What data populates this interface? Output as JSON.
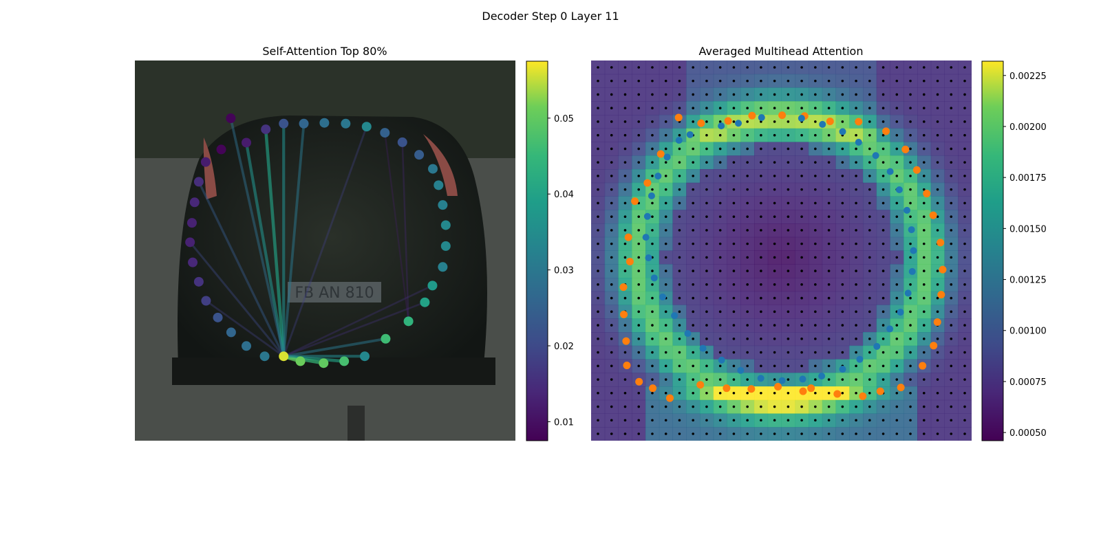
{
  "figure": {
    "suptitle": "Decoder Step 0 Layer 11"
  },
  "chart_data": [
    {
      "type": "scatter",
      "title": "Self-Attention Top 80%",
      "background": "photo of the rear of a dark hatchback car on a city street",
      "plate_text": "FB AN 810",
      "colormap": "viridis",
      "colorbar": {
        "ticks": [
          0.01,
          0.02,
          0.03,
          0.04,
          0.05
        ],
        "tick_labels": [
          "0.01",
          "0.02",
          "0.03",
          "0.04",
          "0.05"
        ],
        "range": [
          0.0075,
          0.0575
        ]
      },
      "points": [
        {
          "x": 0.214,
          "y": 0.248,
          "v": 0.008
        },
        {
          "x": 0.176,
          "y": 0.217,
          "v": 0.012
        },
        {
          "x": 0.215,
          "y": 0.166,
          "v": 0.016
        },
        {
          "x": 0.27,
          "y": 0.14,
          "v": 0.02
        },
        {
          "x": 0.325,
          "y": 0.166,
          "v": 0.022
        },
        {
          "x": 0.383,
          "y": 0.152,
          "v": 0.024
        },
        {
          "x": 0.44,
          "y": 0.15,
          "v": 0.028
        },
        {
          "x": 0.479,
          "y": 0.181,
          "v": 0.03
        },
        {
          "x": 0.496,
          "y": 0.164,
          "v": 0.029
        },
        {
          "x": 0.541,
          "y": 0.14,
          "v": 0.032
        },
        {
          "x": 0.591,
          "y": 0.166,
          "v": 0.034
        },
        {
          "x": 0.634,
          "y": 0.216,
          "v": 0.028
        },
        {
          "x": 0.673,
          "y": 0.242,
          "v": 0.03
        },
        {
          "x": 0.667,
          "y": 0.293,
          "v": 0.032
        },
        {
          "x": 0.703,
          "y": 0.359,
          "v": 0.028
        },
        {
          "x": 0.703,
          "y": 0.416,
          "v": 0.026
        },
        {
          "x": 0.676,
          "y": 0.466,
          "v": 0.026
        },
        {
          "x": 0.632,
          "y": 0.532,
          "v": 0.021
        },
        {
          "x": 0.575,
          "y": 0.568,
          "v": 0.018
        },
        {
          "x": 0.51,
          "y": 0.588,
          "v": 0.016
        },
        {
          "x": 0.437,
          "y": 0.579,
          "v": 0.015
        },
        {
          "x": 0.375,
          "y": 0.535,
          "v": 0.014
        },
        {
          "x": 0.339,
          "y": 0.461,
          "v": 0.013
        },
        {
          "x": 0.318,
          "y": 0.417,
          "v": 0.013
        },
        {
          "x": 0.303,
          "y": 0.369,
          "v": 0.014
        },
        {
          "x": 0.283,
          "y": 0.326,
          "v": 0.015
        },
        {
          "x": 0.278,
          "y": 0.272,
          "v": 0.016
        },
        {
          "x": 0.269,
          "y": 0.215,
          "v": 0.018
        },
        {
          "x": 0.285,
          "y": 0.167,
          "v": 0.02
        },
        {
          "x": 0.293,
          "y": 0.145,
          "v": 0.024
        },
        {
          "x": 0.336,
          "y": 0.143,
          "v": 0.026
        },
        {
          "x": 0.394,
          "y": 0.14,
          "v": 0.03
        }
      ],
      "ring": [
        {
          "x": 0.252,
          "y": 0.152,
          "v": 0.008
        },
        {
          "x": 0.293,
          "y": 0.216,
          "v": 0.012
        },
        {
          "x": 0.344,
          "y": 0.181,
          "v": 0.016
        },
        {
          "x": 0.391,
          "y": 0.166,
          "v": 0.022
        },
        {
          "x": 0.444,
          "y": 0.166,
          "v": 0.026
        },
        {
          "x": 0.498,
          "y": 0.164,
          "v": 0.028
        },
        {
          "x": 0.554,
          "y": 0.166,
          "v": 0.03
        },
        {
          "x": 0.609,
          "y": 0.174,
          "v": 0.034
        },
        {
          "x": 0.657,
          "y": 0.19,
          "v": 0.025
        },
        {
          "x": 0.703,
          "y": 0.215,
          "v": 0.022
        },
        {
          "x": 0.747,
          "y": 0.248,
          "v": 0.024
        },
        {
          "x": 0.783,
          "y": 0.285,
          "v": 0.03
        },
        {
          "x": 0.798,
          "y": 0.328,
          "v": 0.032
        },
        {
          "x": 0.809,
          "y": 0.38,
          "v": 0.032
        },
        {
          "x": 0.817,
          "y": 0.433,
          "v": 0.034
        },
        {
          "x": 0.817,
          "y": 0.488,
          "v": 0.034
        },
        {
          "x": 0.809,
          "y": 0.543,
          "v": 0.032
        },
        {
          "x": 0.782,
          "y": 0.592,
          "v": 0.038
        },
        {
          "x": 0.762,
          "y": 0.636,
          "v": 0.04
        },
        {
          "x": 0.719,
          "y": 0.686,
          "v": 0.044
        },
        {
          "x": 0.659,
          "y": 0.732,
          "v": 0.046
        },
        {
          "x": 0.604,
          "y": 0.778,
          "v": 0.034
        },
        {
          "x": 0.55,
          "y": 0.791,
          "v": 0.047
        },
        {
          "x": 0.496,
          "y": 0.796,
          "v": 0.05
        },
        {
          "x": 0.435,
          "y": 0.791,
          "v": 0.051
        },
        {
          "x": 0.391,
          "y": 0.778,
          "v": 0.056
        },
        {
          "x": 0.341,
          "y": 0.778,
          "v": 0.03
        },
        {
          "x": 0.293,
          "y": 0.751,
          "v": 0.028
        },
        {
          "x": 0.253,
          "y": 0.715,
          "v": 0.026
        },
        {
          "x": 0.218,
          "y": 0.676,
          "v": 0.022
        },
        {
          "x": 0.187,
          "y": 0.632,
          "v": 0.018
        },
        {
          "x": 0.168,
          "y": 0.582,
          "v": 0.016
        },
        {
          "x": 0.152,
          "y": 0.531,
          "v": 0.014
        },
        {
          "x": 0.145,
          "y": 0.478,
          "v": 0.013
        },
        {
          "x": 0.15,
          "y": 0.427,
          "v": 0.013
        },
        {
          "x": 0.157,
          "y": 0.373,
          "v": 0.014
        },
        {
          "x": 0.168,
          "y": 0.319,
          "v": 0.015
        },
        {
          "x": 0.186,
          "y": 0.267,
          "v": 0.012
        },
        {
          "x": 0.227,
          "y": 0.234,
          "v": 0.008
        }
      ],
      "edges": [
        {
          "from": 25,
          "to": 1,
          "w": 0.036
        },
        {
          "from": 25,
          "to": 2,
          "w": 0.04
        },
        {
          "from": 25,
          "to": 3,
          "w": 0.035
        },
        {
          "from": 25,
          "to": 4,
          "w": 0.03
        },
        {
          "from": 25,
          "to": 0,
          "w": 0.028
        },
        {
          "from": 25,
          "to": 36,
          "w": 0.024
        },
        {
          "from": 25,
          "to": 33,
          "w": 0.02
        },
        {
          "from": 25,
          "to": 30,
          "w": 0.018
        },
        {
          "from": 25,
          "to": 22,
          "w": 0.04
        },
        {
          "from": 25,
          "to": 23,
          "w": 0.045
        },
        {
          "from": 25,
          "to": 24,
          "w": 0.05
        },
        {
          "from": 25,
          "to": 21,
          "w": 0.034
        },
        {
          "from": 25,
          "to": 20,
          "w": 0.03
        },
        {
          "from": 25,
          "to": 7,
          "w": 0.018
        },
        {
          "from": 25,
          "to": 17,
          "w": 0.016
        },
        {
          "from": 25,
          "to": 18,
          "w": 0.016
        },
        {
          "from": 19,
          "to": 9,
          "w": 0.014
        },
        {
          "from": 19,
          "to": 8,
          "w": 0.012
        }
      ]
    },
    {
      "type": "heatmap",
      "title": "Averaged Multihead Attention",
      "colormap": "viridis",
      "colorbar": {
        "ticks": [
          0.0005,
          0.00075,
          0.001,
          0.00125,
          0.0015,
          0.00175,
          0.002,
          0.00225
        ],
        "tick_labels": [
          "0.00050",
          "0.00075",
          "0.00100",
          "0.00125",
          "0.00150",
          "0.00175",
          "0.00200",
          "0.00225"
        ],
        "range": [
          0.00046,
          0.00232
        ]
      },
      "grid": {
        "rows": 28,
        "cols": 28
      },
      "orange_points": [
        {
          "x": 0.23,
          "y": 0.15
        },
        {
          "x": 0.289,
          "y": 0.165
        },
        {
          "x": 0.36,
          "y": 0.159
        },
        {
          "x": 0.423,
          "y": 0.145
        },
        {
          "x": 0.502,
          "y": 0.144
        },
        {
          "x": 0.561,
          "y": 0.146
        },
        {
          "x": 0.628,
          "y": 0.16
        },
        {
          "x": 0.703,
          "y": 0.161
        },
        {
          "x": 0.775,
          "y": 0.186
        },
        {
          "x": 0.826,
          "y": 0.234
        },
        {
          "x": 0.856,
          "y": 0.288
        },
        {
          "x": 0.882,
          "y": 0.35
        },
        {
          "x": 0.899,
          "y": 0.407
        },
        {
          "x": 0.918,
          "y": 0.479
        },
        {
          "x": 0.924,
          "y": 0.55
        },
        {
          "x": 0.92,
          "y": 0.616
        },
        {
          "x": 0.91,
          "y": 0.688
        },
        {
          "x": 0.9,
          "y": 0.75
        },
        {
          "x": 0.871,
          "y": 0.803
        },
        {
          "x": 0.814,
          "y": 0.86
        },
        {
          "x": 0.76,
          "y": 0.87
        },
        {
          "x": 0.714,
          "y": 0.883
        },
        {
          "x": 0.647,
          "y": 0.877
        },
        {
          "x": 0.578,
          "y": 0.862
        },
        {
          "x": 0.557,
          "y": 0.87
        },
        {
          "x": 0.491,
          "y": 0.858
        },
        {
          "x": 0.421,
          "y": 0.864
        },
        {
          "x": 0.356,
          "y": 0.862
        },
        {
          "x": 0.287,
          "y": 0.853
        },
        {
          "x": 0.207,
          "y": 0.888
        },
        {
          "x": 0.162,
          "y": 0.862
        },
        {
          "x": 0.126,
          "y": 0.845
        },
        {
          "x": 0.094,
          "y": 0.802
        },
        {
          "x": 0.092,
          "y": 0.738
        },
        {
          "x": 0.086,
          "y": 0.668
        },
        {
          "x": 0.085,
          "y": 0.596
        },
        {
          "x": 0.102,
          "y": 0.529
        },
        {
          "x": 0.098,
          "y": 0.465
        },
        {
          "x": 0.115,
          "y": 0.37
        },
        {
          "x": 0.148,
          "y": 0.322
        },
        {
          "x": 0.183,
          "y": 0.246
        }
      ],
      "blue_points": [
        {
          "x": 0.26,
          "y": 0.195
        },
        {
          "x": 0.342,
          "y": 0.172
        },
        {
          "x": 0.387,
          "y": 0.165
        },
        {
          "x": 0.448,
          "y": 0.15
        },
        {
          "x": 0.553,
          "y": 0.152
        },
        {
          "x": 0.608,
          "y": 0.168
        },
        {
          "x": 0.661,
          "y": 0.187
        },
        {
          "x": 0.703,
          "y": 0.215
        },
        {
          "x": 0.748,
          "y": 0.25
        },
        {
          "x": 0.786,
          "y": 0.292
        },
        {
          "x": 0.81,
          "y": 0.34
        },
        {
          "x": 0.83,
          "y": 0.394
        },
        {
          "x": 0.842,
          "y": 0.445
        },
        {
          "x": 0.847,
          "y": 0.5
        },
        {
          "x": 0.844,
          "y": 0.555
        },
        {
          "x": 0.833,
          "y": 0.612
        },
        {
          "x": 0.813,
          "y": 0.662
        },
        {
          "x": 0.785,
          "y": 0.706
        },
        {
          "x": 0.751,
          "y": 0.752
        },
        {
          "x": 0.706,
          "y": 0.786
        },
        {
          "x": 0.661,
          "y": 0.812
        },
        {
          "x": 0.606,
          "y": 0.83
        },
        {
          "x": 0.556,
          "y": 0.838
        },
        {
          "x": 0.502,
          "y": 0.842
        },
        {
          "x": 0.446,
          "y": 0.836
        },
        {
          "x": 0.393,
          "y": 0.815
        },
        {
          "x": 0.343,
          "y": 0.788
        },
        {
          "x": 0.294,
          "y": 0.757
        },
        {
          "x": 0.254,
          "y": 0.718
        },
        {
          "x": 0.219,
          "y": 0.671
        },
        {
          "x": 0.188,
          "y": 0.622
        },
        {
          "x": 0.166,
          "y": 0.572
        },
        {
          "x": 0.151,
          "y": 0.519
        },
        {
          "x": 0.144,
          "y": 0.465
        },
        {
          "x": 0.148,
          "y": 0.41
        },
        {
          "x": 0.159,
          "y": 0.356
        },
        {
          "x": 0.176,
          "y": 0.304
        },
        {
          "x": 0.2,
          "y": 0.254
        },
        {
          "x": 0.231,
          "y": 0.21
        }
      ]
    }
  ]
}
